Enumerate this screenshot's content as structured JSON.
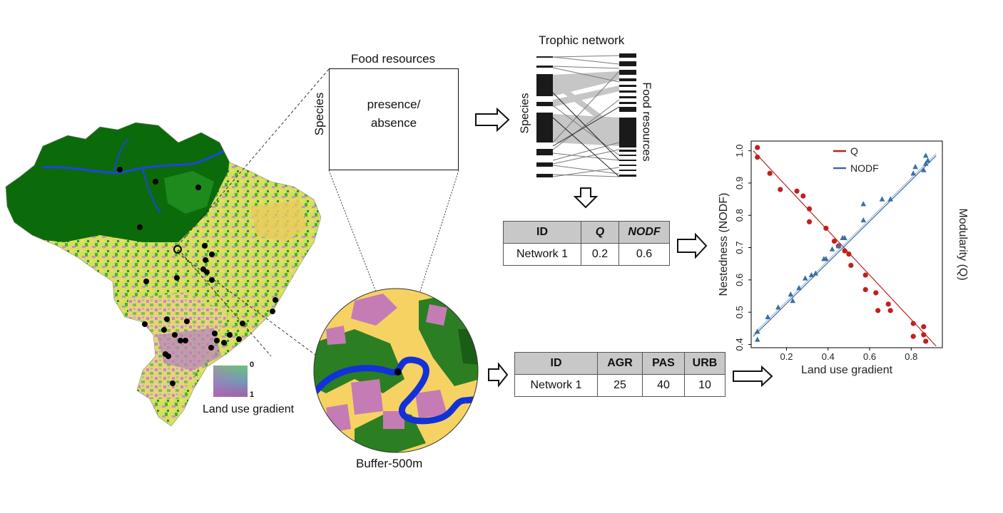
{
  "figure": {
    "map_legend": {
      "top": "0",
      "bottom": "1",
      "caption": "Land use gradient"
    },
    "matrix": {
      "top_label": "Food resources",
      "side_label": "Species",
      "cell_text_line1": "presence/",
      "cell_text_line2": "absence"
    },
    "trophic_network": {
      "title": "Trophic network",
      "left_label": "Species",
      "right_label": "Food resources"
    },
    "buffer_label": "Buffer-500m",
    "network_table": {
      "headers": [
        "ID",
        "Q",
        "NODF"
      ],
      "row": [
        "Network 1",
        "0.2",
        "0.6"
      ]
    },
    "landuse_table": {
      "headers": [
        "ID",
        "AGR",
        "PAS",
        "URB"
      ],
      "row": [
        "Network 1",
        "25",
        "40",
        "10"
      ]
    }
  },
  "chart_data": {
    "type": "scatter",
    "xlabel": "Land use gradient",
    "ylabel": "Nestedness (NODF)",
    "ylabel_right": "Modularity (Q)",
    "xlim": [
      0.03,
      0.95
    ],
    "ylim": [
      0.39,
      1.03
    ],
    "x_ticks": [
      "0.2",
      "0.4",
      "0.6",
      "0.8"
    ],
    "y_ticks": [
      "0.4",
      "0.5",
      "0.6",
      "0.7",
      "0.8",
      "0.9",
      "1.0"
    ],
    "legend_position": "top-center",
    "series": [
      {
        "name": "Q",
        "color": "#c0201e",
        "marker": "circle",
        "x": [
          0.06,
          0.06,
          0.12,
          0.17,
          0.25,
          0.28,
          0.31,
          0.31,
          0.39,
          0.43,
          0.45,
          0.48,
          0.5,
          0.51,
          0.58,
          0.58,
          0.63,
          0.64,
          0.69,
          0.7,
          0.81,
          0.81,
          0.86,
          0.86,
          0.87
        ],
        "y": [
          1.01,
          0.98,
          0.93,
          0.88,
          0.875,
          0.86,
          0.82,
          0.78,
          0.76,
          0.72,
          0.705,
          0.69,
          0.68,
          0.645,
          0.615,
          0.57,
          0.56,
          0.505,
          0.525,
          0.505,
          0.465,
          0.425,
          0.455,
          0.43,
          0.41
        ],
        "fit": [
          [
            0.04,
            1.0
          ],
          [
            0.92,
            0.395
          ]
        ]
      },
      {
        "name": "NODF",
        "color": "#3b6ea5",
        "marker": "triangle",
        "x": [
          0.06,
          0.06,
          0.11,
          0.16,
          0.22,
          0.23,
          0.26,
          0.29,
          0.32,
          0.34,
          0.38,
          0.39,
          0.42,
          0.45,
          0.47,
          0.48,
          0.57,
          0.57,
          0.66,
          0.7,
          0.81,
          0.82,
          0.86,
          0.87,
          0.88,
          0.87
        ],
        "y": [
          0.415,
          0.44,
          0.485,
          0.515,
          0.555,
          0.535,
          0.575,
          0.605,
          0.615,
          0.62,
          0.665,
          0.665,
          0.695,
          0.705,
          0.73,
          0.73,
          0.785,
          0.835,
          0.85,
          0.85,
          0.93,
          0.95,
          0.94,
          0.985,
          0.97,
          0.96
        ],
        "fit": [
          [
            0.04,
            0.425
          ],
          [
            0.92,
            0.985
          ]
        ]
      }
    ]
  },
  "colors": {
    "forest": "#0e6d0e",
    "agriculture": "#f2d26a",
    "pasture": "#c67cb8",
    "urban": "#c9b8b8",
    "water": "#1a3fd6",
    "header_gray": "#c8c8c8"
  }
}
